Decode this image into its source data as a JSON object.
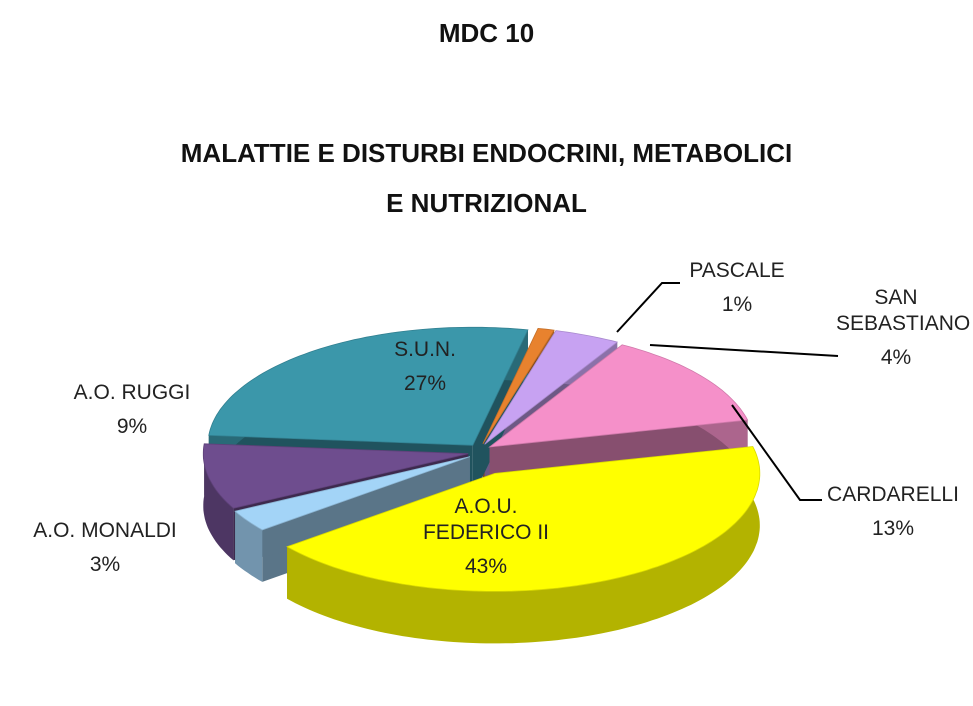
{
  "chart_data": {
    "type": "pie",
    "title": "MDC 10",
    "subtitle": "MALATTIE E DISTURBI ENDOCRINI, METABOLICI E NUTRIZIONAL",
    "categories": [
      "PASCALE",
      "SAN SEBASTIANO",
      "CARDARELLI",
      "A.O.U. FEDERICO II",
      "A.O. MONALDI",
      "A.O. RUGGI",
      "S.U.N."
    ],
    "values": [
      1,
      4,
      13,
      43,
      3,
      9,
      27
    ],
    "value_labels": [
      "1%",
      "4%",
      "13%",
      "43%",
      "3%",
      "9%",
      "27%"
    ],
    "colors": [
      "#e8822e",
      "#c7a2f2",
      "#f590c9",
      "#ffff00",
      "#a3d4f7",
      "#6e4d8e",
      "#3b97aa"
    ]
  }
}
